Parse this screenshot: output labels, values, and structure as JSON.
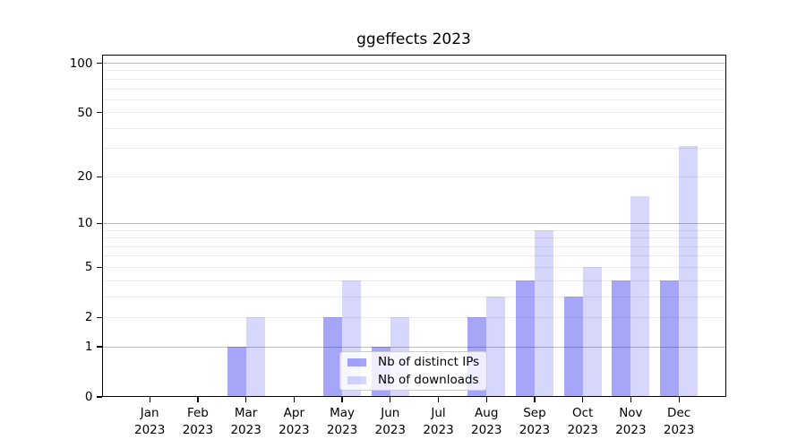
{
  "chart_data": {
    "type": "bar",
    "title": "ggeffects 2023",
    "categories": [
      "Jan",
      "Feb",
      "Mar",
      "Apr",
      "May",
      "Jun",
      "Jul",
      "Aug",
      "Sep",
      "Oct",
      "Nov",
      "Dec"
    ],
    "year_label": "2023",
    "series": [
      {
        "name": "Nb of distinct IPs",
        "values": [
          0,
          0,
          1,
          0,
          2,
          1,
          0,
          2,
          4,
          3,
          4,
          4
        ]
      },
      {
        "name": "Nb of downloads",
        "values": [
          0,
          0,
          2,
          0,
          4,
          2,
          0,
          3,
          9,
          5,
          15,
          31
        ]
      }
    ],
    "yscale": "log1p",
    "ylim": [
      0,
      112
    ],
    "y_tick_labels": [
      0,
      1,
      2,
      5,
      10,
      20,
      50,
      100
    ],
    "y_major_gridlines": [
      1,
      10,
      100
    ],
    "y_minor_gridlines": [
      2,
      3,
      4,
      5,
      6,
      7,
      8,
      9,
      20,
      30,
      40,
      50,
      60,
      70,
      80,
      90
    ],
    "grid": true,
    "legend_position": "lower center"
  },
  "colors": {
    "bar_base": "#0000ee",
    "bar_dark_alpha": 0.35,
    "bar_light_alpha": 0.155,
    "grid_major": "#bdbdbd",
    "grid_minor": "#ececec",
    "spine": "#000000",
    "legend_border": "#cccccc",
    "background": "#ffffff"
  }
}
